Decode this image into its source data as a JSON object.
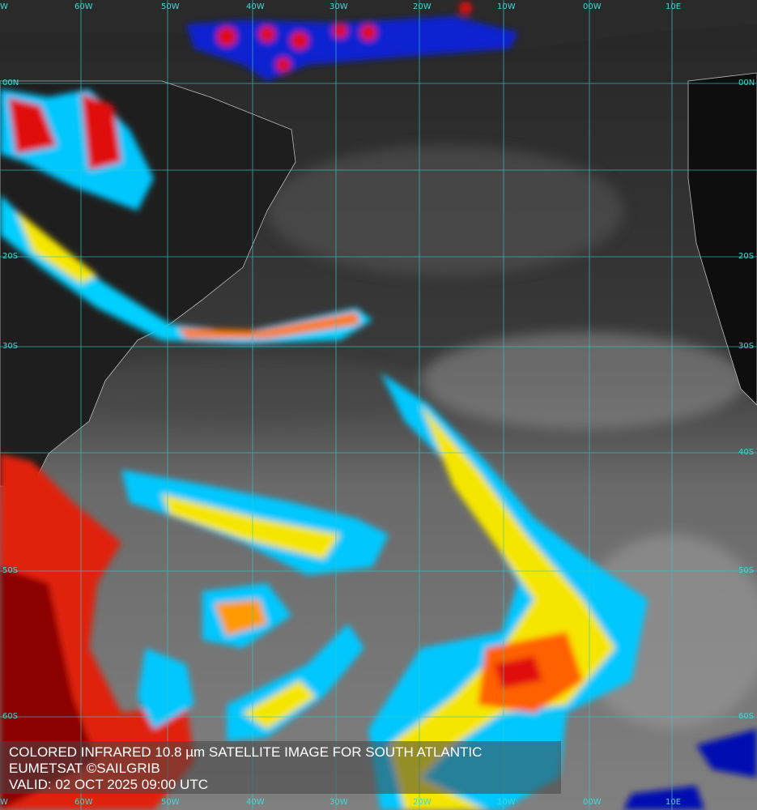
{
  "caption": {
    "title": "COLORED INFRARED 10.8 µm SATELLITE IMAGE FOR SOUTH ATLANTIC",
    "credit": "EUMETSAT ©SAILGRIB",
    "valid": "VALID:  02 OCT 2025 09:00 UTC"
  },
  "grid": {
    "color": "#2fc8c8",
    "longitude_labels": [
      "W",
      "60W",
      "50W",
      "40W",
      "30W",
      "20W",
      "10W",
      "00W",
      "10E"
    ],
    "latitude_labels_left": [
      "00N",
      "20S",
      "30S",
      "50S",
      "60S"
    ],
    "latitude_labels_right": [
      "00N",
      "20S",
      "30S",
      "40S",
      "50S",
      "60S"
    ]
  },
  "colors": {
    "ocean": "#333333",
    "land": "#111111",
    "cold_top": "#8b0000",
    "red": "#e01010",
    "orange": "#ff9a00",
    "yellow": "#f5e600",
    "cyan": "#00d8ff",
    "blue": "#0010c0"
  }
}
